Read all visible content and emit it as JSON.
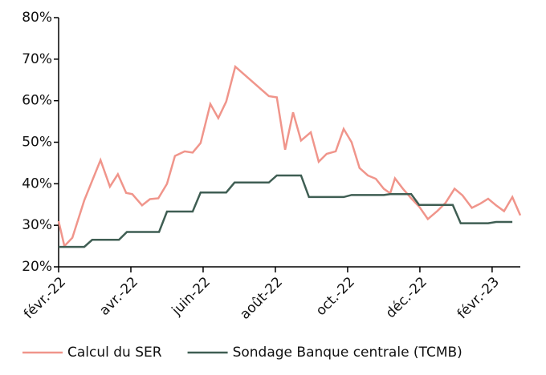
{
  "chart_data": {
    "type": "line",
    "xlim": [
      0,
      12.78
    ],
    "xticks": [
      {
        "value": 0,
        "label": "févr.-22"
      },
      {
        "value": 2,
        "label": "avr.-22"
      },
      {
        "value": 4,
        "label": "juin-22"
      },
      {
        "value": 6,
        "label": "août-22"
      },
      {
        "value": 8,
        "label": "oct.-22"
      },
      {
        "value": 10,
        "label": "déc.-22"
      },
      {
        "value": 12,
        "label": "févr.-23"
      }
    ],
    "ylim": [
      20,
      80
    ],
    "yticks": [
      {
        "value": 20,
        "label": "20%"
      },
      {
        "value": 30,
        "label": "30%"
      },
      {
        "value": 40,
        "label": "40%"
      },
      {
        "value": 50,
        "label": "50%"
      },
      {
        "value": 60,
        "label": "60%"
      },
      {
        "value": 70,
        "label": "70%"
      },
      {
        "value": 80,
        "label": "80%"
      }
    ],
    "series": [
      {
        "name": "Calcul du SER",
        "color": "#f0958b",
        "x": [
          0,
          0.16,
          0.38,
          0.71,
          1.16,
          1.42,
          1.64,
          1.87,
          2.04,
          2.31,
          2.53,
          2.76,
          3.0,
          3.22,
          3.49,
          3.71,
          3.93,
          4.2,
          4.42,
          4.64,
          4.89,
          5.82,
          6.04,
          6.27,
          6.49,
          6.71,
          6.98,
          7.2,
          7.42,
          7.67,
          7.89,
          8.11,
          8.33,
          8.56,
          8.78,
          9.0,
          9.18,
          9.31,
          9.53,
          9.76,
          9.98,
          10.22,
          10.49,
          10.71,
          10.96,
          11.18,
          11.44,
          11.67,
          11.89,
          12.11,
          12.33,
          12.56,
          12.78
        ],
        "values": [
          31,
          25,
          27,
          36,
          45.7,
          39.3,
          42.3,
          37.8,
          37.5,
          34.8,
          36.3,
          36.5,
          40,
          46.7,
          47.8,
          47.5,
          49.8,
          59.2,
          55.8,
          59.8,
          68.2,
          61.1,
          60.8,
          48.2,
          57.2,
          50.4,
          52.4,
          45.3,
          47.2,
          47.8,
          53.2,
          50,
          43.8,
          42,
          41.2,
          38.8,
          37.7,
          41.3,
          38.8,
          36.5,
          34.5,
          31.5,
          33.5,
          35.4,
          38.8,
          37.2,
          34.2,
          35.2,
          36.4,
          34.8,
          33.4,
          36.8,
          32.4
        ]
      },
      {
        "name": "Sondage Banque centrale (TCMB)",
        "color": "#3f5e53",
        "x": [
          0,
          0.71,
          0.93,
          1.67,
          1.89,
          2.78,
          3.0,
          3.71,
          3.93,
          4.64,
          4.87,
          5.82,
          6.04,
          6.71,
          6.93,
          7.89,
          8.11,
          9.0,
          9.18,
          9.76,
          9.98,
          10.91,
          11.13,
          11.89,
          12.11,
          12.56
        ],
        "values": [
          24.8,
          24.8,
          26.5,
          26.5,
          28.4,
          28.4,
          33.3,
          33.3,
          37.9,
          37.9,
          40.3,
          40.3,
          42,
          42,
          36.8,
          36.8,
          37.3,
          37.3,
          37.5,
          37.5,
          34.9,
          34.9,
          30.5,
          30.5,
          30.8,
          30.8
        ]
      }
    ]
  }
}
